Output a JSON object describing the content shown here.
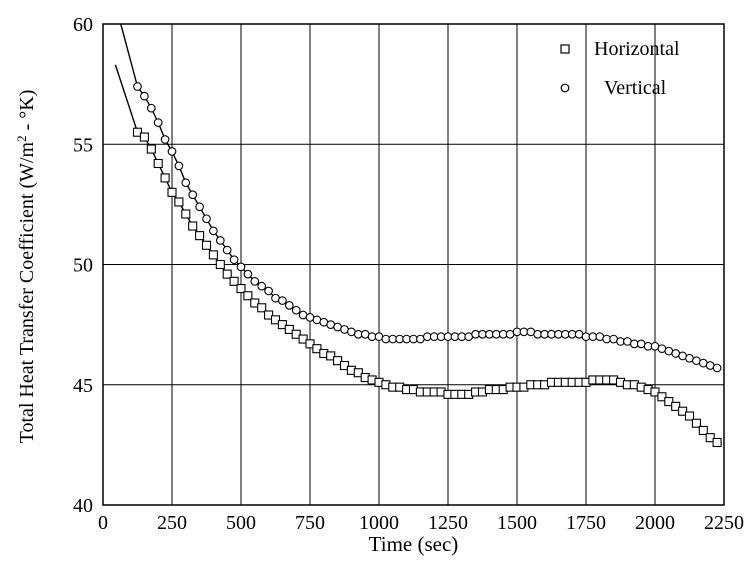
{
  "chart_data": {
    "type": "scatter",
    "xlabel": "Time (sec)",
    "ylabel": "Total Heat Transfer Coefficient (W/m2 - °K)",
    "ylabel_parts": {
      "main": "Total Heat Transfer Coefficient (W/m",
      "sup": "2",
      "rest": " - °K)"
    },
    "xlim": [
      0,
      2250
    ],
    "ylim": [
      40,
      60
    ],
    "xticks": [
      "0",
      "250",
      "500",
      "750",
      "1000",
      "1250",
      "1500",
      "1750",
      "2000",
      "2250"
    ],
    "yticks": [
      "40",
      "45",
      "50",
      "55",
      "60"
    ],
    "grid": true,
    "legend_position": "top-right",
    "series": [
      {
        "name": "Horizontal",
        "marker": "square",
        "x": [
          125,
          150,
          175,
          200,
          225,
          250,
          275,
          300,
          325,
          350,
          375,
          400,
          425,
          450,
          475,
          500,
          525,
          550,
          575,
          600,
          625,
          650,
          675,
          700,
          725,
          750,
          775,
          800,
          825,
          850,
          875,
          900,
          925,
          950,
          975,
          1000,
          1025,
          1050,
          1075,
          1100,
          1125,
          1150,
          1175,
          1200,
          1225,
          1250,
          1275,
          1300,
          1325,
          1350,
          1375,
          1400,
          1425,
          1450,
          1475,
          1500,
          1525,
          1550,
          1575,
          1600,
          1625,
          1650,
          1675,
          1700,
          1725,
          1750,
          1775,
          1800,
          1825,
          1850,
          1875,
          1900,
          1925,
          1950,
          1975,
          2000,
          2025,
          2050,
          2075,
          2100,
          2125,
          2150,
          2175,
          2200,
          2225
        ],
        "y": [
          55.5,
          55.3,
          54.8,
          54.2,
          53.6,
          53.0,
          52.6,
          52.1,
          51.6,
          51.2,
          50.8,
          50.4,
          50.0,
          49.6,
          49.3,
          49.0,
          48.7,
          48.4,
          48.2,
          47.9,
          47.7,
          47.5,
          47.3,
          47.1,
          46.9,
          46.7,
          46.5,
          46.3,
          46.2,
          46.0,
          45.8,
          45.6,
          45.5,
          45.3,
          45.2,
          45.1,
          45.0,
          44.9,
          44.9,
          44.8,
          44.8,
          44.7,
          44.7,
          44.7,
          44.7,
          44.6,
          44.6,
          44.6,
          44.6,
          44.7,
          44.7,
          44.8,
          44.8,
          44.8,
          44.9,
          44.9,
          44.9,
          45.0,
          45.0,
          45.0,
          45.1,
          45.1,
          45.1,
          45.1,
          45.1,
          45.1,
          45.2,
          45.2,
          45.2,
          45.2,
          45.1,
          45.0,
          45.0,
          44.9,
          44.8,
          44.7,
          44.5,
          44.3,
          44.1,
          43.9,
          43.7,
          43.4,
          43.1,
          42.8,
          42.6
        ]
      },
      {
        "name": "Vertical",
        "marker": "circle",
        "x": [
          125,
          150,
          175,
          200,
          225,
          250,
          275,
          300,
          325,
          350,
          375,
          400,
          425,
          450,
          475,
          500,
          525,
          550,
          575,
          600,
          625,
          650,
          675,
          700,
          725,
          750,
          775,
          800,
          825,
          850,
          875,
          900,
          925,
          950,
          975,
          1000,
          1025,
          1050,
          1075,
          1100,
          1125,
          1150,
          1175,
          1200,
          1225,
          1250,
          1275,
          1300,
          1325,
          1350,
          1375,
          1400,
          1425,
          1450,
          1475,
          1500,
          1525,
          1550,
          1575,
          1600,
          1625,
          1650,
          1675,
          1700,
          1725,
          1750,
          1775,
          1800,
          1825,
          1850,
          1875,
          1900,
          1925,
          1950,
          1975,
          2000,
          2025,
          2050,
          2075,
          2100,
          2125,
          2150,
          2175,
          2200,
          2225
        ],
        "y": [
          57.4,
          57.0,
          56.5,
          55.9,
          55.2,
          54.7,
          54.1,
          53.4,
          52.9,
          52.4,
          51.9,
          51.4,
          51.0,
          50.6,
          50.2,
          49.9,
          49.6,
          49.3,
          49.1,
          48.9,
          48.6,
          48.5,
          48.3,
          48.1,
          47.9,
          47.8,
          47.7,
          47.6,
          47.5,
          47.4,
          47.3,
          47.2,
          47.1,
          47.1,
          47.0,
          47.0,
          46.9,
          46.9,
          46.9,
          46.9,
          46.9,
          46.9,
          47.0,
          47.0,
          47.0,
          47.0,
          47.0,
          47.0,
          47.0,
          47.1,
          47.1,
          47.1,
          47.1,
          47.1,
          47.1,
          47.2,
          47.2,
          47.2,
          47.1,
          47.1,
          47.1,
          47.1,
          47.1,
          47.1,
          47.1,
          47.0,
          47.0,
          47.0,
          46.9,
          46.9,
          46.8,
          46.8,
          46.7,
          46.7,
          46.6,
          46.6,
          46.5,
          46.4,
          46.3,
          46.2,
          46.1,
          46.0,
          45.9,
          45.8,
          45.7
        ]
      }
    ]
  }
}
